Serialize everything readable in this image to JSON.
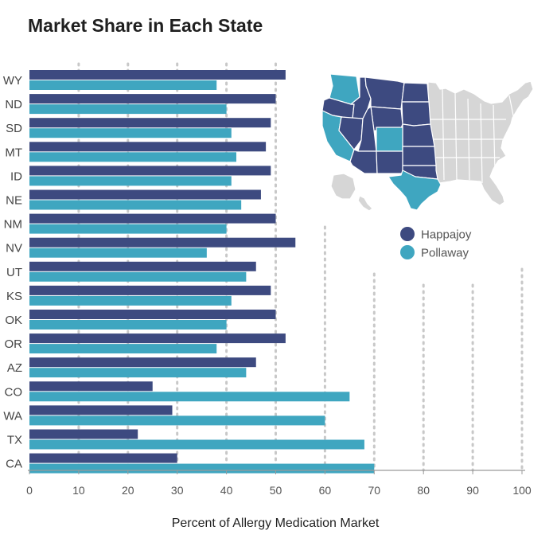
{
  "chart_data": {
    "type": "bar",
    "orientation": "horizontal",
    "title": "Market Share in Each State",
    "xlabel": "Percent of Allergy Medication Market",
    "ylabel": "",
    "xlim": [
      0,
      100
    ],
    "xticks": [
      0,
      10,
      20,
      30,
      40,
      50,
      60,
      70,
      80,
      90,
      100
    ],
    "grid": "vertical dotted",
    "legend_position": "right",
    "categories": [
      "WY",
      "ND",
      "SD",
      "MT",
      "ID",
      "NE",
      "NM",
      "NV",
      "UT",
      "KS",
      "OK",
      "OR",
      "AZ",
      "CO",
      "WA",
      "TX",
      "CA"
    ],
    "series": [
      {
        "name": "Happajoy",
        "color": "#3d4a80",
        "values": [
          52,
          50,
          49,
          48,
          49,
          47,
          50,
          54,
          46,
          49,
          50,
          52,
          46,
          25,
          29,
          22,
          30
        ]
      },
      {
        "name": "Pollaway",
        "color": "#3fa6c0",
        "values": [
          38,
          40,
          41,
          42,
          41,
          43,
          40,
          36,
          44,
          41,
          40,
          38,
          44,
          65,
          60,
          68,
          70
        ]
      }
    ]
  },
  "map": {
    "base_color": "#d6d6d6",
    "border_color": "#ffffff"
  }
}
